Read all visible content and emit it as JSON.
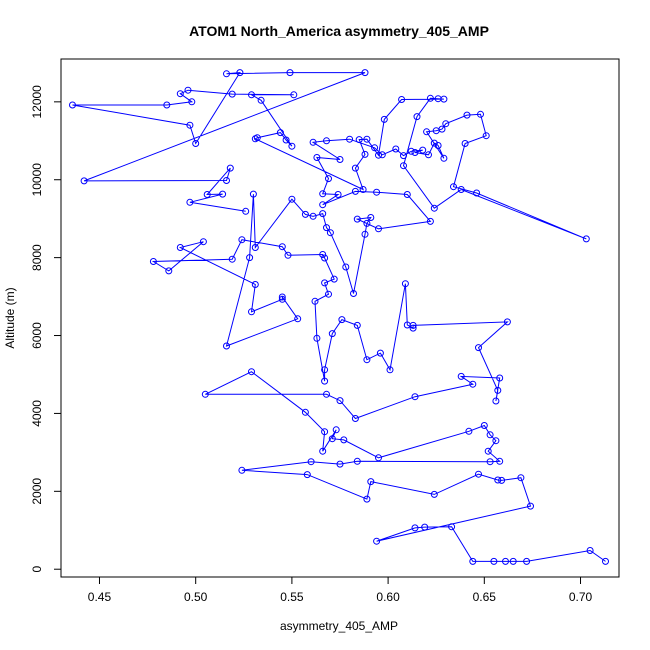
{
  "chart_data": {
    "type": "scatter",
    "title": "ATOM1 North_America asymmetry_405_AMP",
    "xlabel": "asymmetry_405_AMP",
    "ylabel": "Altitude (m)",
    "xlim": [
      0.43,
      0.72
    ],
    "ylim": [
      -200,
      13100
    ],
    "xticks": [
      "0.45",
      "0.50",
      "0.55",
      "0.60",
      "0.65",
      "0.70"
    ],
    "yticks": [
      "0",
      "2000",
      "4000",
      "6000",
      "8000",
      "10000",
      "12000"
    ],
    "grid": false,
    "legend": "none",
    "series_color": "#0000ff",
    "connect_points": true,
    "points": [
      [
        0.713,
        200
      ],
      [
        0.705,
        480
      ],
      [
        0.672,
        200
      ],
      [
        0.665,
        200
      ],
      [
        0.661,
        200
      ],
      [
        0.655,
        200
      ],
      [
        0.644,
        200
      ],
      [
        0.633,
        1090
      ],
      [
        0.619,
        1080
      ],
      [
        0.614,
        1060
      ],
      [
        0.594,
        720
      ],
      [
        0.674,
        1620
      ],
      [
        0.669,
        2350
      ],
      [
        0.659,
        2280
      ],
      [
        0.657,
        2290
      ],
      [
        0.647,
        2440
      ],
      [
        0.624,
        1920
      ],
      [
        0.591,
        2250
      ],
      [
        0.589,
        1800
      ],
      [
        0.558,
        2430
      ],
      [
        0.524,
        2540
      ],
      [
        0.56,
        2760
      ],
      [
        0.575,
        2700
      ],
      [
        0.584,
        2770
      ],
      [
        0.653,
        2760
      ],
      [
        0.658,
        2770
      ],
      [
        0.652,
        3030
      ],
      [
        0.656,
        3300
      ],
      [
        0.653,
        3450
      ],
      [
        0.65,
        3690
      ],
      [
        0.642,
        3540
      ],
      [
        0.595,
        2860
      ],
      [
        0.577,
        3320
      ],
      [
        0.571,
        3350
      ],
      [
        0.573,
        3580
      ],
      [
        0.566,
        3030
      ],
      [
        0.567,
        3530
      ],
      [
        0.557,
        4030
      ],
      [
        0.529,
        5070
      ],
      [
        0.505,
        4490
      ],
      [
        0.568,
        4490
      ],
      [
        0.575,
        4330
      ],
      [
        0.583,
        3870
      ],
      [
        0.614,
        4430
      ],
      [
        0.644,
        4750
      ],
      [
        0.638,
        4950
      ],
      [
        0.658,
        4910
      ],
      [
        0.656,
        4320
      ],
      [
        0.657,
        4590
      ],
      [
        0.647,
        5690
      ],
      [
        0.662,
        6350
      ],
      [
        0.613,
        6260
      ],
      [
        0.613,
        6190
      ],
      [
        0.61,
        6270
      ],
      [
        0.609,
        7330
      ],
      [
        0.601,
        5120
      ],
      [
        0.596,
        5550
      ],
      [
        0.589,
        5380
      ],
      [
        0.584,
        6260
      ],
      [
        0.576,
        6410
      ],
      [
        0.571,
        6050
      ],
      [
        0.567,
        5120
      ],
      [
        0.567,
        4830
      ],
      [
        0.563,
        5930
      ],
      [
        0.562,
        6880
      ],
      [
        0.569,
        7060
      ],
      [
        0.567,
        7350
      ],
      [
        0.572,
        7450
      ],
      [
        0.567,
        7990
      ],
      [
        0.566,
        8080
      ],
      [
        0.548,
        8060
      ],
      [
        0.545,
        8280
      ],
      [
        0.524,
        8460
      ],
      [
        0.519,
        7960
      ],
      [
        0.478,
        7900
      ],
      [
        0.486,
        7660
      ],
      [
        0.504,
        8410
      ],
      [
        0.492,
        8260
      ],
      [
        0.531,
        7310
      ],
      [
        0.529,
        6610
      ],
      [
        0.545,
        6930
      ],
      [
        0.545,
        6990
      ],
      [
        0.553,
        6430
      ],
      [
        0.516,
        5730
      ],
      [
        0.528,
        8000
      ],
      [
        0.53,
        9630
      ],
      [
        0.531,
        8260
      ],
      [
        0.55,
        9500
      ],
      [
        0.557,
        9110
      ],
      [
        0.561,
        9060
      ],
      [
        0.566,
        9130
      ],
      [
        0.568,
        8770
      ],
      [
        0.57,
        8640
      ],
      [
        0.578,
        7760
      ],
      [
        0.582,
        7080
      ],
      [
        0.588,
        8600
      ],
      [
        0.589,
        8880
      ],
      [
        0.591,
        9030
      ],
      [
        0.584,
        8990
      ],
      [
        0.595,
        8740
      ],
      [
        0.622,
        8930
      ],
      [
        0.61,
        9620
      ],
      [
        0.594,
        9680
      ],
      [
        0.583,
        9700
      ],
      [
        0.566,
        9360
      ],
      [
        0.574,
        9620
      ],
      [
        0.566,
        9640
      ],
      [
        0.569,
        10030
      ],
      [
        0.563,
        10570
      ],
      [
        0.575,
        10520
      ],
      [
        0.561,
        10960
      ],
      [
        0.568,
        11000
      ],
      [
        0.58,
        11040
      ],
      [
        0.593,
        10820
      ],
      [
        0.597,
        10640
      ],
      [
        0.604,
        10790
      ],
      [
        0.608,
        10620
      ],
      [
        0.612,
        10730
      ],
      [
        0.618,
        10760
      ],
      [
        0.614,
        10700
      ],
      [
        0.621,
        10640
      ],
      [
        0.624,
        10940
      ],
      [
        0.626,
        10880
      ],
      [
        0.629,
        10550
      ],
      [
        0.62,
        11230
      ],
      [
        0.625,
        11260
      ],
      [
        0.628,
        11300
      ],
      [
        0.63,
        11440
      ],
      [
        0.641,
        11660
      ],
      [
        0.648,
        11680
      ],
      [
        0.651,
        11130
      ],
      [
        0.64,
        10930
      ],
      [
        0.634,
        9820
      ],
      [
        0.646,
        9660
      ],
      [
        0.703,
        8480
      ],
      [
        0.638,
        9750
      ],
      [
        0.624,
        9270
      ],
      [
        0.608,
        10360
      ],
      [
        0.615,
        11620
      ],
      [
        0.622,
        12090
      ],
      [
        0.626,
        12080
      ],
      [
        0.629,
        12070
      ],
      [
        0.607,
        12060
      ],
      [
        0.598,
        11550
      ],
      [
        0.595,
        10630
      ],
      [
        0.589,
        11040
      ],
      [
        0.585,
        11030
      ],
      [
        0.588,
        10650
      ],
      [
        0.583,
        10300
      ],
      [
        0.587,
        9750
      ],
      [
        0.531,
        11050
      ],
      [
        0.532,
        11080
      ],
      [
        0.544,
        11210
      ],
      [
        0.547,
        11020
      ],
      [
        0.55,
        10860
      ],
      [
        0.534,
        12040
      ],
      [
        0.529,
        12180
      ],
      [
        0.551,
        12180
      ],
      [
        0.519,
        12200
      ],
      [
        0.496,
        12300
      ],
      [
        0.492,
        12210
      ],
      [
        0.498,
        12000
      ],
      [
        0.485,
        11920
      ],
      [
        0.436,
        11920
      ],
      [
        0.497,
        11400
      ],
      [
        0.5,
        10930
      ],
      [
        0.523,
        12750
      ],
      [
        0.516,
        12720
      ],
      [
        0.549,
        12750
      ],
      [
        0.588,
        12750
      ],
      [
        0.442,
        9970
      ],
      [
        0.516,
        9980
      ],
      [
        0.518,
        10300
      ],
      [
        0.506,
        9620
      ],
      [
        0.514,
        9630
      ],
      [
        0.497,
        9420
      ],
      [
        0.526,
        9190
      ]
    ]
  }
}
